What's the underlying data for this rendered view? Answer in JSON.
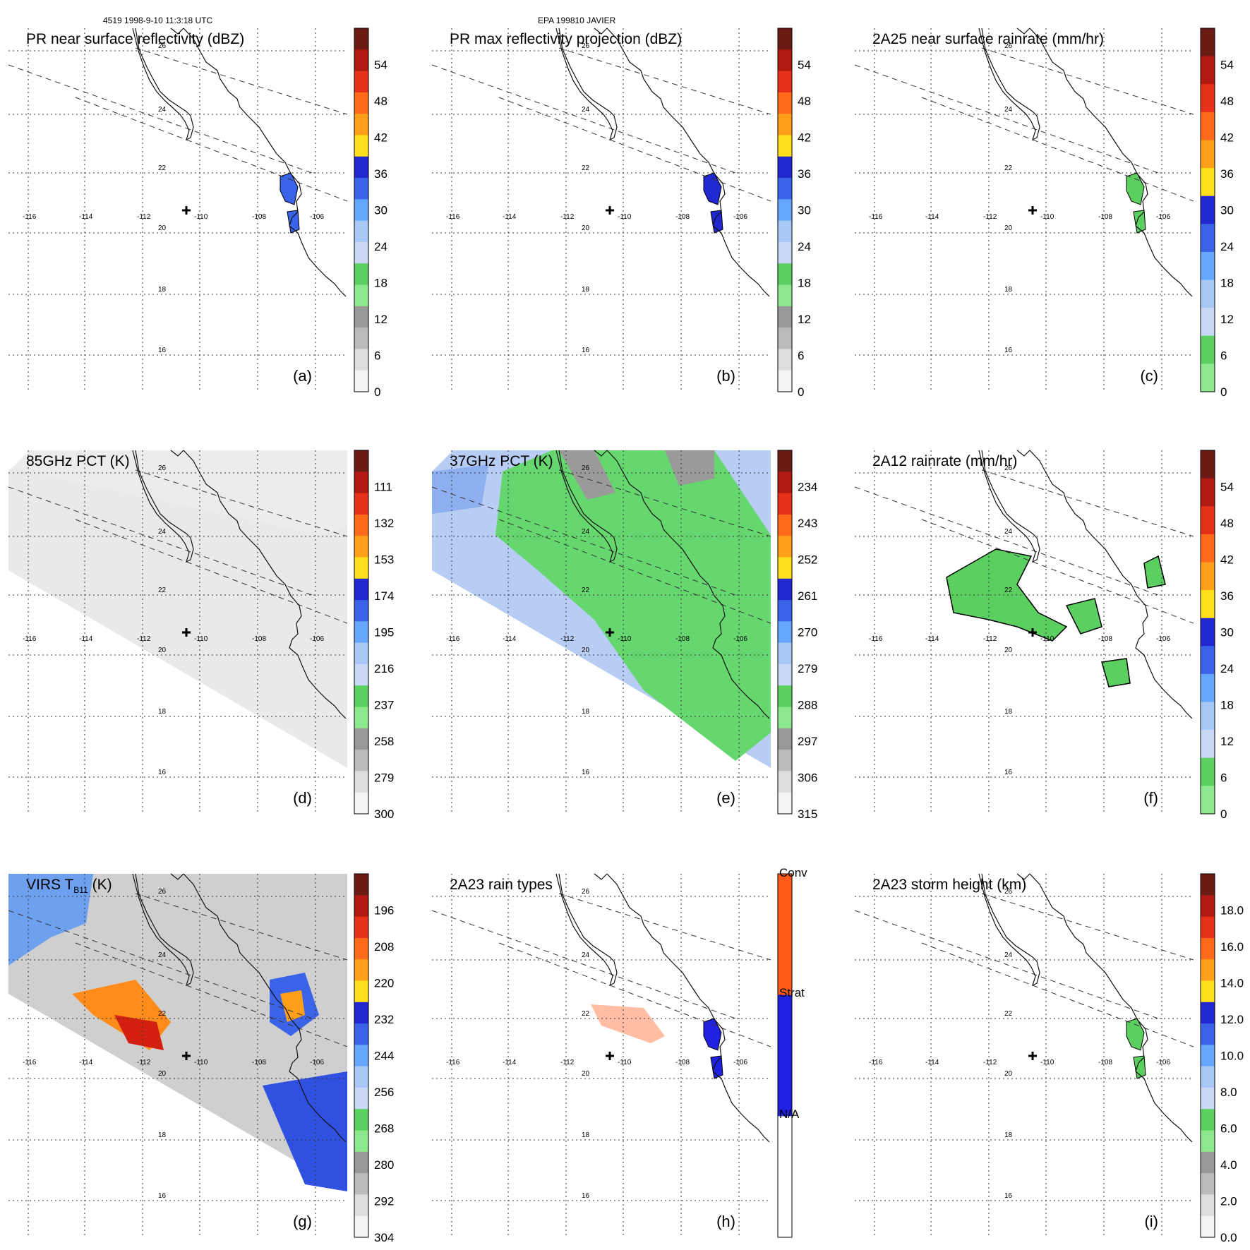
{
  "header": {
    "orbit_caption": "4519 1998-9-10 11:3:18 UTC",
    "storm_caption": "EPA 199810 JAVIER"
  },
  "lon_labels": [
    "-116",
    "-114",
    "-112",
    "-110",
    "-108",
    "-106"
  ],
  "lat_labels": [
    "26",
    "24",
    "22",
    "20",
    "18",
    "16"
  ],
  "panels": [
    {
      "id": "a",
      "letter": "(a)",
      "title": "PR near surface reflectivity (dBZ)",
      "scale": "dbz",
      "ticks": [
        "54",
        "48",
        "42",
        "36",
        "30",
        "24",
        "18",
        "12",
        "6",
        "0"
      ]
    },
    {
      "id": "b",
      "letter": "(b)",
      "title": "PR max reflectivity projection (dBZ)",
      "scale": "dbz",
      "ticks": [
        "54",
        "48",
        "42",
        "36",
        "30",
        "24",
        "18",
        "12",
        "6",
        "0"
      ]
    },
    {
      "id": "c",
      "letter": "(c)",
      "title": "2A25 near surface rainrate (mm/hr)",
      "scale": "rain",
      "ticks": [
        "54",
        "48",
        "42",
        "36",
        "30",
        "24",
        "18",
        "12",
        "6",
        "0"
      ]
    },
    {
      "id": "d",
      "letter": "(d)",
      "title": "85GHz PCT (K)",
      "scale": "dbz",
      "ticks": [
        "111",
        "132",
        "153",
        "174",
        "195",
        "216",
        "237",
        "258",
        "279",
        "300"
      ]
    },
    {
      "id": "e",
      "letter": "(e)",
      "title": "37GHz PCT (K)",
      "scale": "dbz",
      "ticks": [
        "234",
        "243",
        "252",
        "261",
        "270",
        "279",
        "288",
        "297",
        "306",
        "315"
      ]
    },
    {
      "id": "f",
      "letter": "(f)",
      "title": "2A12 rainrate (mm/hr)",
      "scale": "rain",
      "ticks": [
        "54",
        "48",
        "42",
        "36",
        "30",
        "24",
        "18",
        "12",
        "6",
        "0"
      ]
    },
    {
      "id": "g",
      "letter": "(g)",
      "title": "VIRS T",
      "title_sub": "B11",
      "title_end": " (K)",
      "scale": "dbz",
      "ticks": [
        "196",
        "208",
        "220",
        "232",
        "244",
        "256",
        "268",
        "280",
        "292",
        "304"
      ]
    },
    {
      "id": "h",
      "letter": "(h)",
      "title": "2A23 rain types",
      "scale": "types",
      "ticks": [
        "Conv",
        "Strat",
        "N/A"
      ]
    },
    {
      "id": "i",
      "letter": "(i)",
      "title": "2A23 storm height (km)",
      "scale": "dbz",
      "ticks": [
        "18.0",
        "16.0",
        "14.0",
        "12.0",
        "10.0",
        "8.0",
        "6.0",
        "4.0",
        "2.0",
        "0.0"
      ]
    }
  ],
  "colors": {
    "dbz_scale": [
      "#6b1a14",
      "#b01a10",
      "#e6301a",
      "#ff6a1a",
      "#ff9f1a",
      "#ffe01a",
      "#2228d0",
      "#3a63e8",
      "#66a8ff",
      "#a8c8f5",
      "#c8d8f5",
      "#5bd060",
      "#8ee890",
      "#999999",
      "#bbbbbb",
      "#dddddd",
      "#f4f4f4"
    ],
    "rain_scale": [
      "#6b1a14",
      "#b01a10",
      "#e6301a",
      "#ff6a1a",
      "#ff9f1a",
      "#ffe01a",
      "#2228d0",
      "#3a63e8",
      "#66a8ff",
      "#a8c8f5",
      "#c8d8f5",
      "#5bd060",
      "#8ee890"
    ],
    "types_scale": [
      "#ff5a1a",
      "#2020e0",
      "#ffffff"
    ],
    "marker": "#000000"
  }
}
